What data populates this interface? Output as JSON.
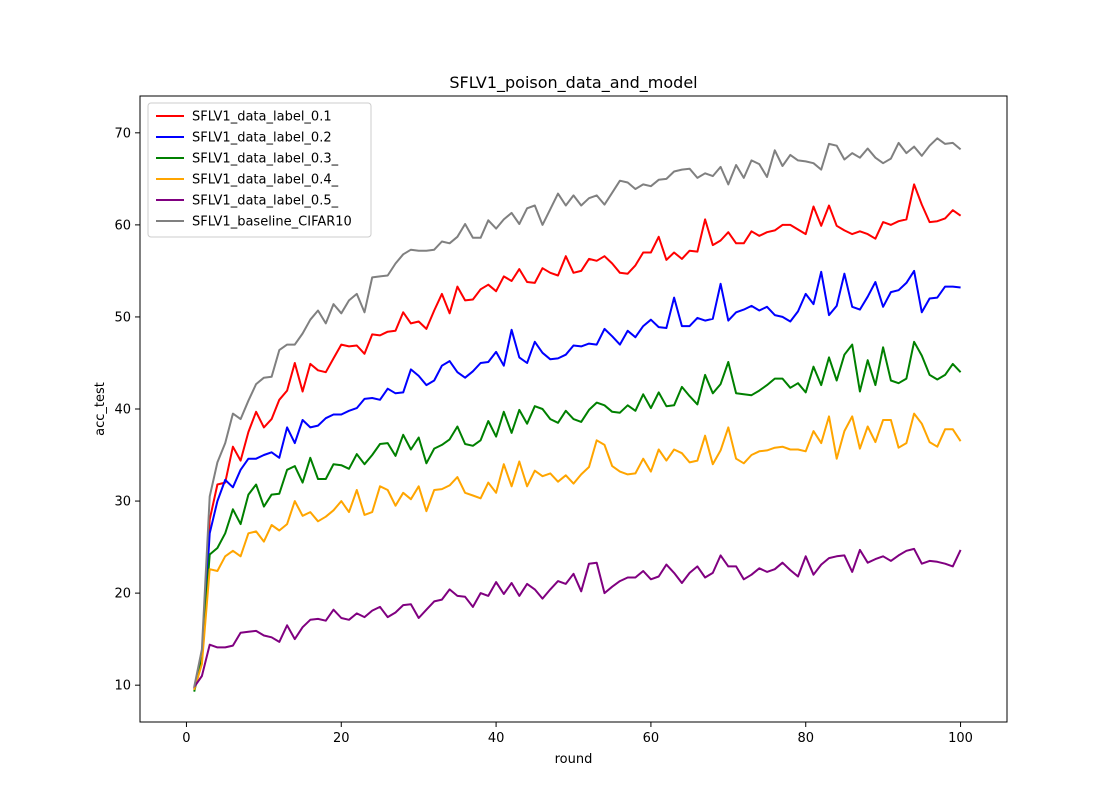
{
  "chart_data": {
    "type": "line",
    "title": "SFLV1_poison_data_and_model",
    "xlabel": "round",
    "ylabel": "acc_test",
    "xlim": [
      -6,
      106
    ],
    "ylim": [
      6,
      74
    ],
    "xticks": [
      0,
      20,
      40,
      60,
      80,
      100
    ],
    "yticks": [
      10,
      20,
      30,
      40,
      50,
      60,
      70
    ],
    "grid": false,
    "legend_position": "top-left",
    "x": [
      1,
      2,
      3,
      4,
      5,
      6,
      7,
      8,
      9,
      10,
      11,
      12,
      13,
      14,
      15,
      16,
      17,
      18,
      19,
      20,
      21,
      22,
      23,
      24,
      25,
      26,
      27,
      28,
      29,
      30,
      31,
      32,
      33,
      34,
      35,
      36,
      37,
      38,
      39,
      40,
      41,
      42,
      43,
      44,
      45,
      46,
      47,
      48,
      49,
      50,
      51,
      52,
      53,
      54,
      55,
      56,
      57,
      58,
      59,
      60,
      61,
      62,
      63,
      64,
      65,
      66,
      67,
      68,
      69,
      70,
      71,
      72,
      73,
      74,
      75,
      76,
      77,
      78,
      79,
      80,
      81,
      82,
      83,
      84,
      85,
      86,
      87,
      88,
      89,
      90,
      91,
      92,
      93,
      94,
      95,
      96,
      97,
      98,
      99,
      100
    ],
    "series": [
      {
        "name": "SFLV1_data_label_0.1",
        "color": "#ff0000",
        "values": [
          9.7,
          12.9,
          28.0,
          31.8,
          32.0,
          35.9,
          34.4,
          37.5,
          39.7,
          38.0,
          38.9,
          41.0,
          42.0,
          45.0,
          41.9,
          44.9,
          44.2,
          44.0,
          45.5,
          47.0,
          46.8,
          46.9,
          46.0,
          48.1,
          48.0,
          48.4,
          48.5,
          50.5,
          49.3,
          49.5,
          48.7,
          50.7,
          52.5,
          50.4,
          53.3,
          51.8,
          51.9,
          53.0,
          53.5,
          52.8,
          54.4,
          53.9,
          55.2,
          53.8,
          53.7,
          55.3,
          54.8,
          54.5,
          56.6,
          54.8,
          55.0,
          56.3,
          56.1,
          56.6,
          55.8,
          54.8,
          54.7,
          55.6,
          57.0,
          57.0,
          58.7,
          56.2,
          57.0,
          56.3,
          57.2,
          57.1,
          60.6,
          57.8,
          58.3,
          59.2,
          58.0,
          58.0,
          59.3,
          58.8,
          59.2,
          59.4,
          60.0,
          60.0,
          59.5,
          59.0,
          62.0,
          59.9,
          62.1,
          59.9,
          59.4,
          59.0,
          59.3,
          59.0,
          58.5,
          60.3,
          60.0,
          60.4,
          60.6,
          64.4,
          62.2,
          60.3,
          60.4,
          60.7,
          61.6,
          61.0
        ]
      },
      {
        "name": "SFLV1_data_label_0.2",
        "color": "#0000ff",
        "values": [
          9.6,
          12.6,
          26.5,
          30.0,
          32.3,
          31.5,
          33.4,
          34.6,
          34.6,
          35.0,
          35.3,
          34.7,
          38.0,
          36.3,
          38.8,
          38.0,
          38.2,
          39.0,
          39.4,
          39.4,
          39.8,
          40.1,
          41.1,
          41.2,
          41.0,
          42.2,
          41.7,
          41.8,
          44.3,
          43.6,
          42.6,
          43.1,
          44.7,
          45.2,
          44.0,
          43.4,
          44.1,
          45.0,
          45.1,
          46.2,
          44.7,
          48.6,
          45.6,
          45.0,
          47.3,
          46.1,
          45.4,
          45.5,
          45.9,
          46.9,
          46.8,
          47.1,
          47.0,
          48.7,
          47.9,
          47.0,
          48.5,
          47.8,
          49.0,
          49.7,
          48.9,
          48.8,
          52.1,
          49.0,
          49.0,
          49.9,
          49.6,
          49.8,
          53.6,
          49.6,
          50.5,
          50.8,
          51.2,
          50.7,
          51.1,
          50.2,
          50.0,
          49.5,
          50.6,
          52.5,
          51.4,
          54.9,
          50.2,
          51.2,
          54.7,
          51.1,
          50.8,
          52.2,
          53.8,
          51.1,
          52.7,
          52.9,
          53.7,
          55.0,
          50.5,
          52.0,
          52.1,
          53.3,
          53.3,
          53.2
        ]
      },
      {
        "name": "SFLV1_data_label_0.3_",
        "color": "#008000",
        "values": [
          9.3,
          12.8,
          24.2,
          24.9,
          26.5,
          29.1,
          27.5,
          30.7,
          31.8,
          29.4,
          30.7,
          30.8,
          33.4,
          33.8,
          32.0,
          34.7,
          32.4,
          32.4,
          34.0,
          33.9,
          33.5,
          35.1,
          34.0,
          35.0,
          36.2,
          36.3,
          34.9,
          37.2,
          35.6,
          36.9,
          34.1,
          35.7,
          36.1,
          36.7,
          38.1,
          36.2,
          36.0,
          36.6,
          38.7,
          37.0,
          39.7,
          37.4,
          39.9,
          38.4,
          40.3,
          40.0,
          38.9,
          38.5,
          39.8,
          38.9,
          38.6,
          39.9,
          40.7,
          40.4,
          39.7,
          39.6,
          40.4,
          39.8,
          41.6,
          40.1,
          41.8,
          40.3,
          40.4,
          42.4,
          41.4,
          40.5,
          43.7,
          41.7,
          42.7,
          45.1,
          41.7,
          41.6,
          41.5,
          42.0,
          42.6,
          43.3,
          43.3,
          42.3,
          42.8,
          41.8,
          44.6,
          42.6,
          45.6,
          43.1,
          45.9,
          47.0,
          41.9,
          45.3,
          42.6,
          46.7,
          43.1,
          42.8,
          43.3,
          47.3,
          45.8,
          43.7,
          43.2,
          43.7,
          44.9,
          44.0
        ]
      },
      {
        "name": "SFLV1_data_label_0.4_",
        "color": "#ffa500",
        "values": [
          9.5,
          12.3,
          22.6,
          22.4,
          24.0,
          24.6,
          24.0,
          26.5,
          26.7,
          25.6,
          27.4,
          26.8,
          27.5,
          30.0,
          28.4,
          28.8,
          27.8,
          28.3,
          29.0,
          30.0,
          28.8,
          31.2,
          28.5,
          28.8,
          31.6,
          31.2,
          29.5,
          30.9,
          30.2,
          31.6,
          28.9,
          31.2,
          31.3,
          31.7,
          32.6,
          30.9,
          30.6,
          30.3,
          32.0,
          30.9,
          34.0,
          31.6,
          34.3,
          31.6,
          33.3,
          32.7,
          33.0,
          32.1,
          32.8,
          31.9,
          32.9,
          33.7,
          36.6,
          36.1,
          33.8,
          33.2,
          32.9,
          33.0,
          34.6,
          33.2,
          35.6,
          34.4,
          35.6,
          35.2,
          34.2,
          34.4,
          37.1,
          34.0,
          35.5,
          38.0,
          34.6,
          34.1,
          35.0,
          35.4,
          35.5,
          35.8,
          35.9,
          35.6,
          35.6,
          35.4,
          37.6,
          36.3,
          39.2,
          34.6,
          37.6,
          39.2,
          35.7,
          38.1,
          36.4,
          38.8,
          38.8,
          35.8,
          36.3,
          39.5,
          38.4,
          36.4,
          35.9,
          37.8,
          37.8,
          36.5
        ]
      },
      {
        "name": "SFLV1_data_label_0.5_",
        "color": "#800080",
        "values": [
          9.8,
          11.0,
          14.4,
          14.1,
          14.1,
          14.3,
          15.7,
          15.8,
          15.9,
          15.4,
          15.2,
          14.7,
          16.5,
          15.0,
          16.3,
          17.1,
          17.2,
          17.0,
          18.2,
          17.3,
          17.1,
          17.8,
          17.4,
          18.1,
          18.5,
          17.4,
          17.9,
          18.7,
          18.8,
          17.3,
          18.2,
          19.1,
          19.3,
          20.4,
          19.7,
          19.6,
          18.5,
          20.0,
          19.7,
          21.2,
          19.9,
          21.1,
          19.7,
          21.0,
          20.4,
          19.4,
          20.4,
          21.3,
          21.0,
          22.1,
          20.2,
          23.2,
          23.3,
          20.0,
          20.7,
          21.3,
          21.7,
          21.7,
          22.4,
          21.5,
          21.8,
          23.1,
          22.2,
          21.1,
          22.2,
          22.9,
          21.7,
          22.2,
          24.1,
          22.9,
          22.9,
          21.5,
          22.0,
          22.7,
          22.3,
          22.6,
          23.3,
          22.5,
          21.8,
          24.0,
          22.0,
          23.1,
          23.8,
          24.0,
          24.1,
          22.3,
          24.7,
          23.3,
          23.7,
          24.0,
          23.5,
          24.1,
          24.6,
          24.8,
          23.2,
          23.5,
          23.4,
          23.2,
          22.9,
          24.7
        ]
      },
      {
        "name": "SFLV1_baseline_CIFAR10",
        "color": "#808080",
        "values": [
          9.8,
          13.9,
          30.5,
          34.2,
          36.3,
          39.5,
          38.9,
          40.9,
          42.7,
          43.4,
          43.5,
          46.4,
          47.0,
          47.0,
          48.2,
          49.7,
          50.7,
          49.3,
          51.4,
          50.4,
          51.8,
          52.5,
          50.5,
          54.3,
          54.4,
          54.5,
          55.8,
          56.8,
          57.3,
          57.2,
          57.2,
          57.3,
          58.2,
          58.0,
          58.7,
          60.1,
          58.6,
          58.6,
          60.5,
          59.6,
          60.6,
          61.3,
          60.1,
          61.8,
          62.1,
          60.0,
          61.7,
          63.4,
          62.1,
          63.2,
          62.1,
          62.9,
          63.2,
          62.2,
          63.5,
          64.8,
          64.6,
          63.9,
          64.4,
          64.2,
          64.9,
          65.0,
          65.8,
          66.0,
          66.1,
          65.1,
          65.6,
          65.3,
          66.3,
          64.4,
          66.5,
          65.1,
          67.0,
          66.6,
          65.2,
          68.1,
          66.4,
          67.6,
          67.0,
          66.9,
          66.7,
          66.0,
          68.8,
          68.6,
          67.1,
          67.8,
          67.3,
          68.3,
          67.3,
          66.7,
          67.2,
          68.9,
          67.8,
          68.5,
          67.5,
          68.6,
          69.4,
          68.8,
          68.9,
          68.2
        ]
      }
    ]
  }
}
